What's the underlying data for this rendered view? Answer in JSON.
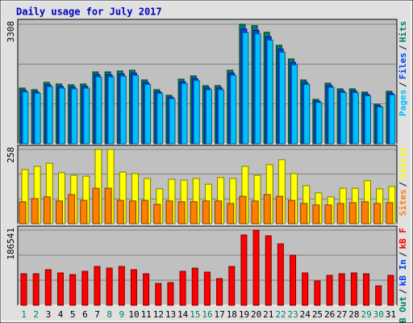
{
  "chart_data": [
    {
      "type": "bar",
      "title": "Daily usage for July 2017",
      "ylim": [
        0,
        3308
      ],
      "yticks": [
        3308
      ],
      "legend_separator": "/",
      "series": [
        {
          "name": "Hits",
          "color": "#00805c",
          "values": [
            1542,
            1498,
            1699,
            1654,
            1632,
            1654,
            1989,
            1989,
            2012,
            2034,
            1766,
            1498,
            1341,
            1788,
            1877,
            1609,
            1609,
            2034,
            3308,
            3270,
            3085,
            2727,
            2347,
            1766,
            1229,
            1676,
            1520,
            1520,
            1430,
            1095,
            1453
          ]
        },
        {
          "name": "Files",
          "color": "#0040ff",
          "values": [
            1480,
            1438,
            1631,
            1588,
            1567,
            1588,
            1909,
            1909,
            1931,
            1953,
            1695,
            1438,
            1287,
            1716,
            1802,
            1545,
            1545,
            1953,
            3176,
            3139,
            2962,
            2618,
            2253,
            1695,
            1180,
            1609,
            1459,
            1459,
            1373,
            1051,
            1395
          ]
        },
        {
          "name": "Pages",
          "color": "#00c0ff",
          "values": [
            1434,
            1393,
            1580,
            1538,
            1518,
            1538,
            1850,
            1850,
            1871,
            1892,
            1642,
            1393,
            1247,
            1663,
            1746,
            1496,
            1496,
            1892,
            3076,
            3041,
            2869,
            2536,
            2183,
            1642,
            1143,
            1559,
            1414,
            1414,
            1330,
            1018,
            1351
          ]
        }
      ]
    },
    {
      "type": "bar",
      "ylim": [
        0,
        258
      ],
      "yticks": [
        258
      ],
      "legend_separator": "/",
      "series": [
        {
          "name": "Visits",
          "color": "#ffff00",
          "values": [
            188,
            199,
            210,
            177,
            168,
            165,
            258,
            258,
            179,
            174,
            157,
            121,
            154,
            151,
            157,
            137,
            160,
            157,
            199,
            168,
            205,
            222,
            174,
            132,
            107,
            93,
            123,
            123,
            149,
            121,
            129
          ]
        },
        {
          "name": "Sites",
          "color": "#ff8000",
          "values": [
            76,
            87,
            93,
            79,
            101,
            81,
            123,
            123,
            81,
            79,
            81,
            67,
            79,
            76,
            76,
            79,
            79,
            70,
            95,
            79,
            101,
            95,
            81,
            70,
            65,
            65,
            70,
            73,
            76,
            70,
            73
          ]
        }
      ]
    },
    {
      "type": "bar",
      "ylim": [
        0,
        186541
      ],
      "yticks": [
        186541
      ],
      "legend_separator": "/",
      "categories": [
        "1",
        "2",
        "3",
        "4",
        "5",
        "6",
        "7",
        "8",
        "9",
        "10",
        "11",
        "12",
        "13",
        "14",
        "15",
        "16",
        "17",
        "18",
        "19",
        "20",
        "21",
        "22",
        "23",
        "24",
        "25",
        "26",
        "27",
        "28",
        "29",
        "30",
        "31"
      ],
      "category_colors": [
        "#00805c",
        "#00805c",
        "#000000",
        "#000000",
        "#000000",
        "#000000",
        "#000000",
        "#00805c",
        "#00805c",
        "#000000",
        "#000000",
        "#000000",
        "#000000",
        "#000000",
        "#00805c",
        "#00805c",
        "#000000",
        "#000000",
        "#000000",
        "#000000",
        "#000000",
        "#00805c",
        "#00805c",
        "#000000",
        "#000000",
        "#000000",
        "#000000",
        "#000000",
        "#00805c",
        "#00805c",
        "#000000"
      ],
      "series": [
        {
          "name": "kB F",
          "color": "#ff0000",
          "values": [
            78226,
            78226,
            88256,
            80232,
            76220,
            84244,
            96279,
            92268,
            96279,
            88256,
            78226,
            54157,
            56163,
            84244,
            92268,
            82238,
            66191,
            96279,
            174508,
            186541,
            172502,
            152444,
            124362,
            80232,
            60175,
            74215,
            78226,
            80232,
            78226,
            48139,
            74215
          ]
        }
      ],
      "extra_legend": [
        {
          "name": "kB In",
          "color": "#0040ff"
        },
        {
          "name": "kB Out",
          "color": "#00805c"
        }
      ]
    }
  ]
}
